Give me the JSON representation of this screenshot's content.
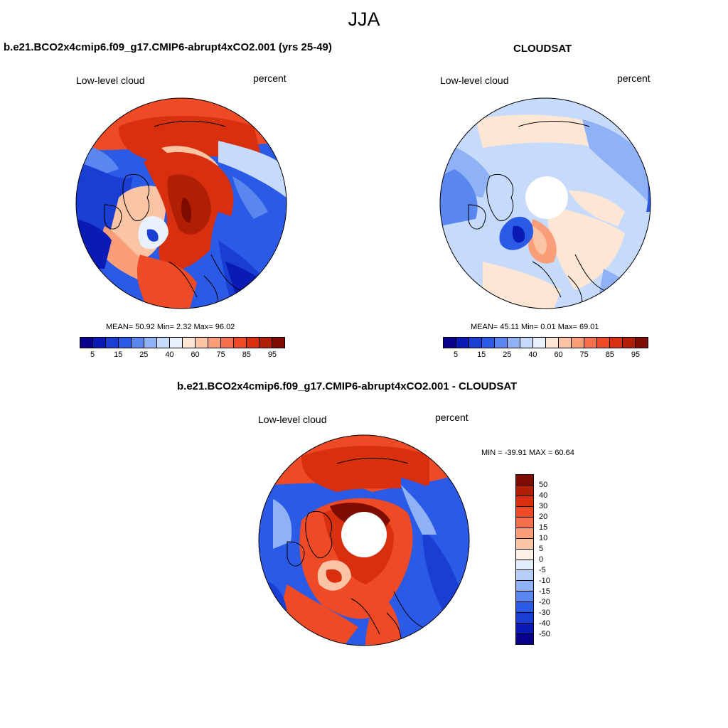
{
  "figure": {
    "title": "JJA"
  },
  "panels": {
    "model": {
      "title": "b.e21.BCO2x4cmip6.f09_g17.CMIP6-abrupt4xCO2.001 (yrs 25-49)",
      "left_label": "Low-level cloud",
      "right_label": "percent",
      "stats": "MEAN=  50.92  Min=   2.32  Max=  96.02"
    },
    "obs": {
      "title": "CLOUDSAT",
      "left_label": "Low-level cloud",
      "right_label": "percent",
      "stats": "MEAN=  45.11  Min=   0.01  Max=  69.01"
    },
    "diff": {
      "title": "b.e21.BCO2x4cmip6.f09_g17.CMIP6-abrupt4xCO2.001 - CLOUDSAT",
      "left_label": "Low-level cloud",
      "right_label": "percent",
      "stats": "MIN = -39.91 MAX =  60.64"
    }
  },
  "colorbars": {
    "abs": {
      "colors": [
        "#08008a",
        "#0a1ab4",
        "#1a3ed4",
        "#2a5ae6",
        "#5a86f0",
        "#8fb1f6",
        "#c6dbfb",
        "#e8f1fd",
        "#fde6d4",
        "#fbc5a5",
        "#f99e78",
        "#f5704c",
        "#ee4a26",
        "#d8300e",
        "#b01e04",
        "#7e0c00"
      ],
      "ticks": [
        "5",
        "15",
        "25",
        "40",
        "60",
        "75",
        "85",
        "95"
      ]
    },
    "diff": {
      "colors": [
        "#7e0c00",
        "#b01e04",
        "#d8300e",
        "#ee4a26",
        "#f5704c",
        "#f99e78",
        "#fbc5a5",
        "#fdf0e4",
        "#e2edfc",
        "#b8d0f7",
        "#8fb1f6",
        "#5a86f0",
        "#2a5ae6",
        "#1a3ed4",
        "#0a1ab4",
        "#08008a"
      ],
      "ticks": [
        "50",
        "40",
        "30",
        "20",
        "15",
        "10",
        "5",
        "0",
        "-5",
        "-10",
        "-15",
        "-20",
        "-30",
        "-40",
        "-50"
      ]
    }
  }
}
